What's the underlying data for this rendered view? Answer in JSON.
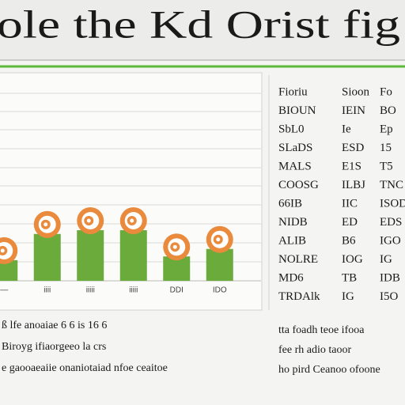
{
  "header": {
    "title": "ole the Kd Orist fig"
  },
  "chart_data": {
    "type": "bar",
    "categories": [
      "—",
      "iiii",
      "iiiii",
      "iiiii",
      "DDI",
      "IDO"
    ],
    "values": [
      1.1,
      2.5,
      2.7,
      2.7,
      1.3,
      1.7
    ],
    "color": "#6aab3c",
    "marker_color": "#e98a3c",
    "ylim": [
      0,
      10
    ]
  },
  "table": {
    "rows": [
      [
        "Fioriu",
        "Sioon",
        "Fo"
      ],
      [
        "BIOUN",
        "IEIN",
        "BO"
      ],
      [
        "SbL0",
        "Ie",
        "Ep"
      ],
      [
        "SLaDS",
        "ESD",
        "15"
      ],
      [
        "MALS",
        "E1S",
        "T5"
      ],
      [
        "COOSG",
        "ILBJ",
        "TNC"
      ],
      [
        "66IB",
        "IIC",
        "ISOD"
      ],
      [
        "NIDB",
        "ED",
        "EDS"
      ],
      [
        "ALIB",
        "B6",
        "IGO"
      ],
      [
        "NOLRE",
        "IOG",
        "IG"
      ],
      [
        "MD6",
        "TB",
        "IDB"
      ],
      [
        "TRDAlk",
        "IG",
        "I5O"
      ]
    ]
  },
  "notes": {
    "left": [
      "ß lfe anoaiae 6 6 is 16 6",
      "Biroyg ifiaorgeeo la crs",
      "e gaooaeaiie onaniotaiad nfoe ceaitoe"
    ],
    "right": [
      "tta foadh teoe ifooa",
      "fee rh adio taoor",
      "ho pird Ceanoo ofoone"
    ]
  }
}
